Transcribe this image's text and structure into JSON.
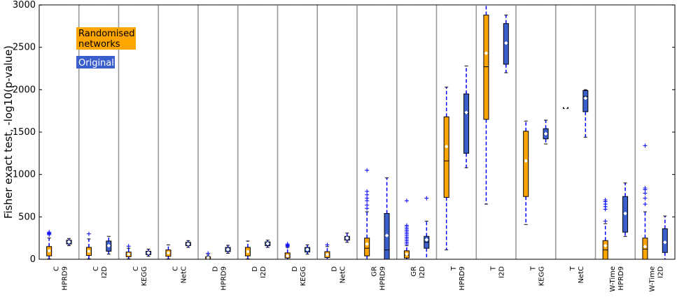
{
  "chart_data": {
    "type": "box",
    "ylabel": "Fisher exact test, -log10(p-value)",
    "ylim": [
      0,
      3000
    ],
    "yticks": [
      0,
      500,
      1000,
      1500,
      2000,
      2500,
      3000
    ],
    "legend": {
      "placement": "top-left",
      "entries": [
        {
          "label": "Randomised\nnetworks",
          "color": "#ffa500",
          "text_color": "#000000"
        },
        {
          "label": "Original",
          "color": "#3a5fcd",
          "text_color": "#ffffff"
        }
      ]
    },
    "colors": {
      "randomised": "#ffa500",
      "original": "#3a5fcd",
      "whisker": "#0000ff",
      "separator": "#999999"
    },
    "groups": [
      {
        "line1": "C",
        "line2": "HPRD9",
        "randomised": {
          "q1": 40,
          "med": 100,
          "q3": 150,
          "wlo": 5,
          "whi": 250,
          "mean": 100,
          "outliers": [
            290,
            300,
            310,
            320
          ]
        },
        "original": {
          "q1": 180,
          "med": 205,
          "q3": 225,
          "wlo": 160,
          "whi": 245,
          "mean": 205,
          "outliers": []
        }
      },
      {
        "line1": "C",
        "line2": "I2D",
        "randomised": {
          "q1": 45,
          "med": 95,
          "q3": 140,
          "wlo": 5,
          "whi": 240,
          "mean": 95,
          "outliers": [
            300
          ]
        },
        "original": {
          "q1": 95,
          "med": 160,
          "q3": 215,
          "wlo": 60,
          "whi": 270,
          "mean": 160,
          "outliers": []
        }
      },
      {
        "line1": "C",
        "line2": "KEGG",
        "randomised": {
          "q1": 30,
          "med": 60,
          "q3": 85,
          "wlo": 5,
          "whi": 130,
          "mean": 60,
          "outliers": [
            155
          ]
        },
        "original": {
          "q1": 55,
          "med": 75,
          "q3": 95,
          "wlo": 35,
          "whi": 120,
          "mean": 75,
          "outliers": []
        }
      },
      {
        "line1": "C",
        "line2": "NetC",
        "randomised": {
          "q1": 35,
          "med": 75,
          "q3": 110,
          "wlo": 5,
          "whi": 170,
          "mean": 75,
          "outliers": []
        },
        "original": {
          "q1": 160,
          "med": 180,
          "q3": 200,
          "wlo": 140,
          "whi": 220,
          "mean": 180,
          "outliers": []
        }
      },
      {
        "line1": "D",
        "line2": "HPRD9",
        "randomised": {
          "q1": 3,
          "med": 15,
          "q3": 30,
          "wlo": 0,
          "whi": 50,
          "mean": 15,
          "outliers": [
            70
          ]
        },
        "original": {
          "q1": 90,
          "med": 115,
          "q3": 140,
          "wlo": 70,
          "whi": 165,
          "mean": 115,
          "outliers": []
        }
      },
      {
        "line1": "D",
        "line2": "I2D",
        "randomised": {
          "q1": 40,
          "med": 90,
          "q3": 140,
          "wlo": 5,
          "whi": 215,
          "mean": 90,
          "outliers": []
        },
        "original": {
          "q1": 160,
          "med": 185,
          "q3": 205,
          "wlo": 140,
          "whi": 225,
          "mean": 185,
          "outliers": []
        }
      },
      {
        "line1": "D",
        "line2": "KEGG",
        "randomised": {
          "q1": 15,
          "med": 40,
          "q3": 75,
          "wlo": 0,
          "whi": 140,
          "mean": 40,
          "outliers": [
            150,
            160,
            170,
            180
          ]
        },
        "original": {
          "q1": 85,
          "med": 115,
          "q3": 140,
          "wlo": 60,
          "whi": 170,
          "mean": 115,
          "outliers": []
        }
      },
      {
        "line1": "D",
        "line2": "NetC",
        "randomised": {
          "q1": 20,
          "med": 55,
          "q3": 90,
          "wlo": 0,
          "whi": 150,
          "mean": 55,
          "outliers": [
            170
          ]
        },
        "original": {
          "q1": 225,
          "med": 250,
          "q3": 270,
          "wlo": 200,
          "whi": 310,
          "mean": 250,
          "outliers": []
        }
      },
      {
        "line1": "GR",
        "line2": "HPRD9",
        "randomised": {
          "q1": 40,
          "med": 130,
          "q3": 250,
          "wlo": 0,
          "whi": 560,
          "mean": 180,
          "outliers": [
            600,
            640,
            690,
            720,
            760,
            800,
            1050
          ]
        },
        "original": {
          "q1": 0,
          "med": 110,
          "q3": 540,
          "wlo": 0,
          "whi": 960,
          "mean": 280,
          "outliers": []
        }
      },
      {
        "line1": "GR",
        "line2": "I2D",
        "randomised": {
          "q1": 15,
          "med": 50,
          "q3": 100,
          "wlo": 0,
          "whi": 160,
          "mean": 60,
          "outliers": [
            180,
            200,
            220,
            240,
            260,
            280,
            300,
            320,
            340,
            360,
            380,
            400,
            690
          ]
        },
        "original": {
          "q1": 130,
          "med": 200,
          "q3": 270,
          "wlo": 0,
          "whi": 450,
          "mean": 230,
          "outliers": [
            720
          ]
        }
      },
      {
        "line1": "T",
        "line2": "HPRD9",
        "randomised": {
          "q1": 730,
          "med": 1160,
          "q3": 1680,
          "wlo": 110,
          "whi": 2030,
          "mean": 1330,
          "outliers": []
        },
        "original": {
          "q1": 1250,
          "med": 1720,
          "q3": 1950,
          "wlo": 1080,
          "whi": 2280,
          "mean": 1730,
          "outliers": []
        }
      },
      {
        "line1": "T",
        "line2": "I2D",
        "randomised": {
          "q1": 1650,
          "med": 2270,
          "q3": 2880,
          "wlo": 650,
          "whi": 3000,
          "mean": 2430,
          "outliers": []
        },
        "original": {
          "q1": 2300,
          "med": 2550,
          "q3": 2780,
          "wlo": 2200,
          "whi": 2880,
          "mean": 2550,
          "outliers": []
        }
      },
      {
        "line1": "T",
        "line2": "KEGG",
        "randomised": {
          "q1": 740,
          "med": 1160,
          "q3": 1510,
          "wlo": 410,
          "whi": 1630,
          "mean": 1160,
          "outliers": []
        },
        "original": {
          "q1": 1420,
          "med": 1480,
          "q3": 1540,
          "wlo": 1360,
          "whi": 1640,
          "mean": 1480,
          "outliers": []
        }
      },
      {
        "line1": "T",
        "line2": "NetC",
        "randomised": {
          "q1": 1790,
          "med": 1790,
          "q3": 1790,
          "wlo": 1790,
          "whi": 1790,
          "mean": 1790,
          "outliers": []
        },
        "original": {
          "q1": 1740,
          "med": 1920,
          "q3": 1990,
          "wlo": 1440,
          "whi": 2000,
          "mean": 1900,
          "outliers": []
        }
      },
      {
        "line1": "W-Time",
        "line2": "HPRD9",
        "randomised": {
          "q1": 0,
          "med": 110,
          "q3": 220,
          "wlo": 0,
          "whi": 420,
          "mean": 160,
          "outliers": [
            450,
            590,
            620,
            650,
            680,
            700
          ]
        },
        "original": {
          "q1": 320,
          "med": 540,
          "q3": 740,
          "wlo": 270,
          "whi": 900,
          "mean": 540,
          "outliers": []
        }
      },
      {
        "line1": "W-Time",
        "line2": "I2D",
        "randomised": {
          "q1": 0,
          "med": 120,
          "q3": 250,
          "wlo": 0,
          "whi": 560,
          "mean": 150,
          "outliers": [
            650,
            720,
            780,
            820,
            840,
            1340
          ]
        },
        "original": {
          "q1": 80,
          "med": 200,
          "q3": 360,
          "wlo": 0,
          "whi": 510,
          "mean": 200,
          "outliers": []
        }
      }
    ]
  }
}
